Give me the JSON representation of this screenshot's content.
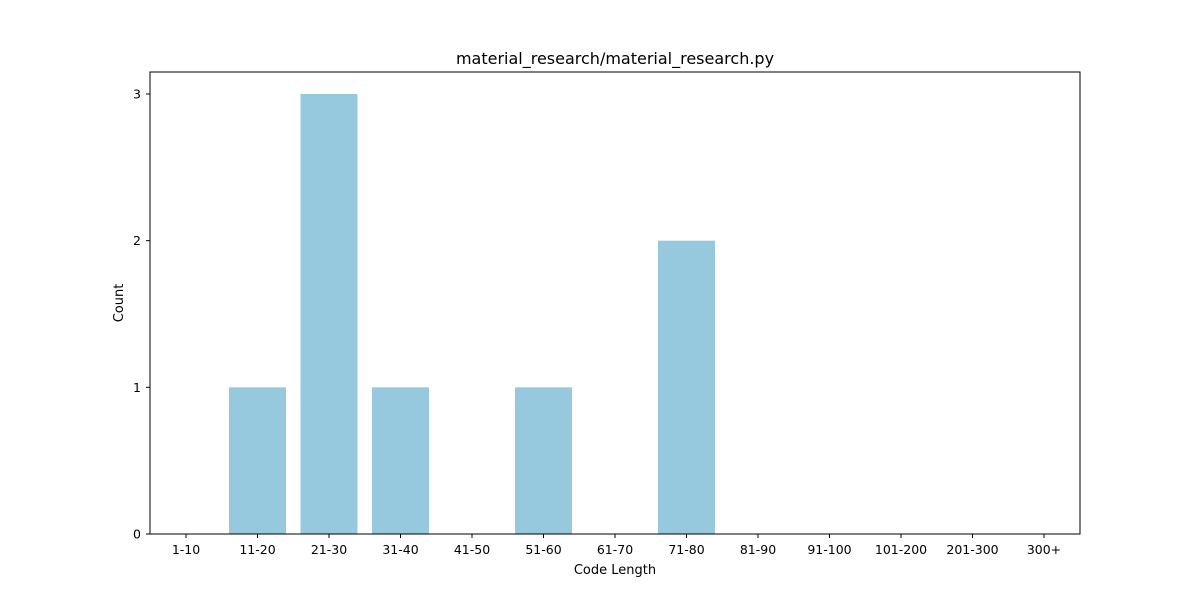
{
  "chart_data": {
    "type": "bar",
    "title": "material_research/material_research.py",
    "xlabel": "Code Length",
    "ylabel": "Count",
    "categories": [
      "1-10",
      "11-20",
      "21-30",
      "31-40",
      "41-50",
      "51-60",
      "61-70",
      "71-80",
      "81-90",
      "91-100",
      "101-200",
      "201-300",
      "300+"
    ],
    "values": [
      0,
      1,
      3,
      1,
      0,
      1,
      0,
      2,
      0,
      0,
      0,
      0,
      0
    ],
    "yticks": [
      0,
      1,
      2,
      3
    ],
    "ylim": [
      0,
      3.15
    ],
    "grid": false,
    "bar_color": "#96c9dd"
  }
}
